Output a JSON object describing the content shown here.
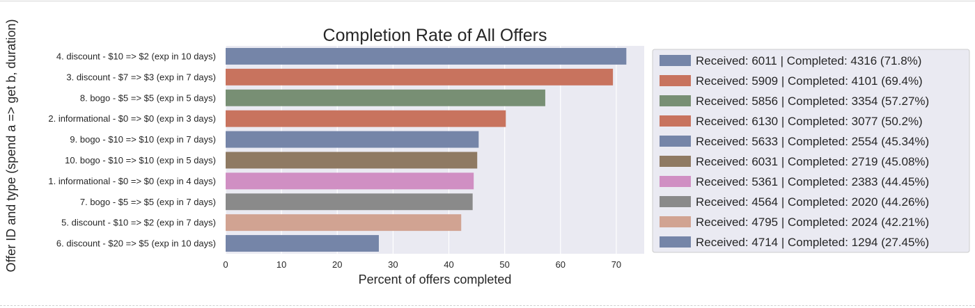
{
  "chart_data": {
    "type": "bar",
    "orientation": "horizontal",
    "title": "Completion Rate of All Offers",
    "xlabel": "Percent of offers completed",
    "ylabel": "Offer ID and type (spend a => get b, duration)",
    "xlim": [
      0,
      75
    ],
    "x_ticks": [
      0,
      10,
      20,
      30,
      40,
      50,
      60,
      70
    ],
    "grid": true,
    "legend_placement": "right",
    "categories": [
      "4. discount - $10 => $2 (exp in 10 days)",
      "3. discount - $7 => $3 (exp in 7 days)",
      "8. bogo - $5 => $5 (exp in 5 days)",
      "2. informational - $0 => $0 (exp in 3 days)",
      "9. bogo - $10 => $10 (exp in 7 days)",
      "10. bogo - $10 => $10 (exp in 5 days)",
      "1. informational - $0 => $0 (exp in 4 days)",
      "7. bogo - $5 => $5 (exp in 7 days)",
      "5. discount - $10 => $2 (exp in 7 days)",
      "6. discount - $20 => $5 (exp in 10 days)"
    ],
    "values": [
      71.8,
      69.4,
      57.27,
      50.2,
      45.34,
      45.08,
      44.45,
      44.26,
      42.21,
      27.45
    ],
    "colors": [
      "#7585a8",
      "#c8735e",
      "#788f74",
      "#c8735e",
      "#7585a8",
      "#8f7a63",
      "#d08fc3",
      "#8a8a8a",
      "#d1a392",
      "#7585a8"
    ],
    "legend": [
      "Received: 6011 | Completed: 4316 (71.8%)",
      "Received: 5909 | Completed: 4101 (69.4%)",
      "Received: 5856 | Completed: 3354 (57.27%)",
      "Received: 6130 | Completed: 3077 (50.2%)",
      "Received: 5633 | Completed: 2554 (45.34%)",
      "Received: 6031 | Completed: 2719 (45.08%)",
      "Received: 5361 | Completed: 2383 (44.45%)",
      "Received: 4564 | Completed: 2020 (44.26%)",
      "Received: 4795 | Completed: 2024 (42.21%)",
      "Received: 4714 | Completed: 1294 (27.45%)"
    ],
    "plot_background": "#eaeaf2"
  }
}
